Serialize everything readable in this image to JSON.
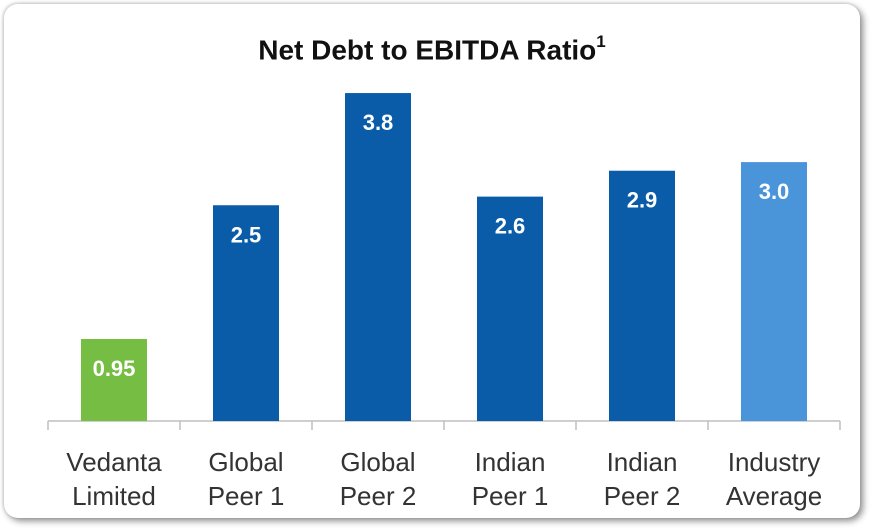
{
  "chart_data": {
    "type": "bar",
    "title": "Net Debt to EBITDA Ratio",
    "title_superscript": "1",
    "categories": [
      [
        "Vedanta",
        "Limited"
      ],
      [
        "Global",
        "Peer 1"
      ],
      [
        "Global",
        "Peer 2"
      ],
      [
        "Indian",
        "Peer 1"
      ],
      [
        "Indian",
        "Peer 2"
      ],
      [
        "Industry",
        "Average"
      ]
    ],
    "values": [
      0.95,
      2.5,
      3.8,
      2.6,
      2.9,
      3.0
    ],
    "value_labels": [
      "0.95",
      "2.5",
      "3.8",
      "2.6",
      "2.9",
      "3.0"
    ],
    "colors": [
      "#76BD43",
      "#0A5CA8",
      "#0A5CA8",
      "#0A5CA8",
      "#0A5CA8",
      "#4A94DA"
    ],
    "xlabel": "",
    "ylabel": "",
    "ylim": [
      0,
      4
    ],
    "grid": false,
    "legend": "none"
  }
}
